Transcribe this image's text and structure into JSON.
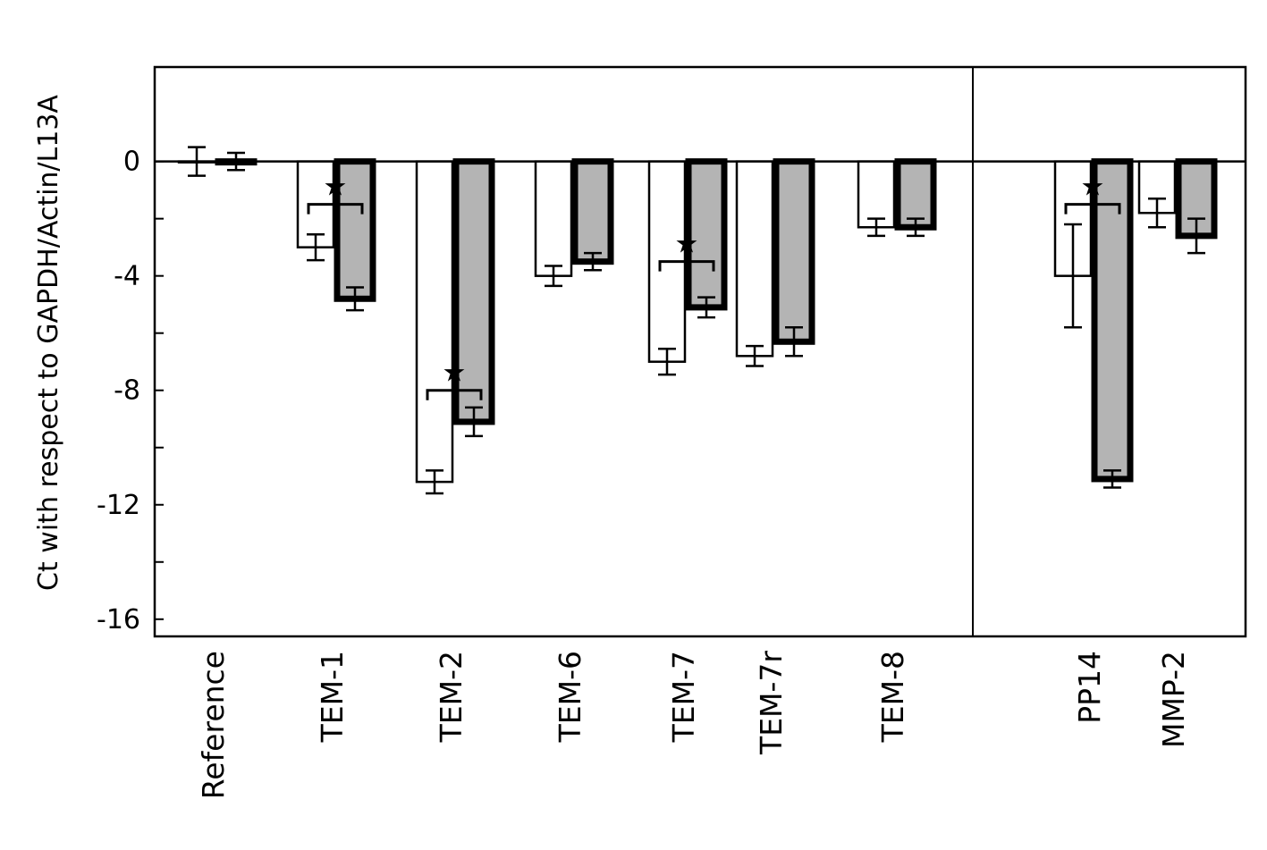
{
  "chart_data": {
    "type": "bar",
    "title": "",
    "xlabel": "",
    "ylabel": "Ct with respect to GAPDH/Actin/L13A",
    "ylim": [
      -16.6,
      3.3
    ],
    "yticks": [
      0,
      -4,
      -8,
      -12,
      -16
    ],
    "ytick_labels": [
      "0",
      "-4",
      "-8",
      "-12",
      "-16"
    ],
    "grid": false,
    "legend": "none",
    "categories": [
      "Reference",
      "TEM-1",
      "TEM-2",
      "TEM-6",
      "TEM-7",
      "TEM-7r",
      "TEM-8",
      "PP14",
      "MMP-2"
    ],
    "series": [
      {
        "values": [
          0.0,
          -3.0,
          -11.2,
          -4.0,
          -7.0,
          -6.8,
          -2.3,
          -4.0,
          -1.8
        ],
        "errors": [
          0.5,
          0.45,
          0.4,
          0.35,
          0.45,
          0.35,
          0.3,
          1.8,
          0.5
        ],
        "color": "#ffffff",
        "edge": "thin"
      },
      {
        "values": [
          0.0,
          -4.8,
          -9.1,
          -3.5,
          -5.1,
          -6.3,
          -2.3,
          -11.1,
          -2.6
        ],
        "errors": [
          0.3,
          0.4,
          0.5,
          0.3,
          0.35,
          0.5,
          0.3,
          0.3,
          0.6
        ],
        "color": "#b4b4b4",
        "edge": "thick"
      }
    ],
    "significance": [
      {
        "category": "TEM-1",
        "label": "★",
        "bracket_at": -1.5
      },
      {
        "category": "TEM-2",
        "label": "★",
        "bracket_at": -8.0
      },
      {
        "category": "TEM-7",
        "label": "★",
        "bracket_at": -3.5
      },
      {
        "category": "PP14",
        "label": "★",
        "bracket_at": -1.5
      }
    ],
    "separator_after": "TEM-8"
  }
}
